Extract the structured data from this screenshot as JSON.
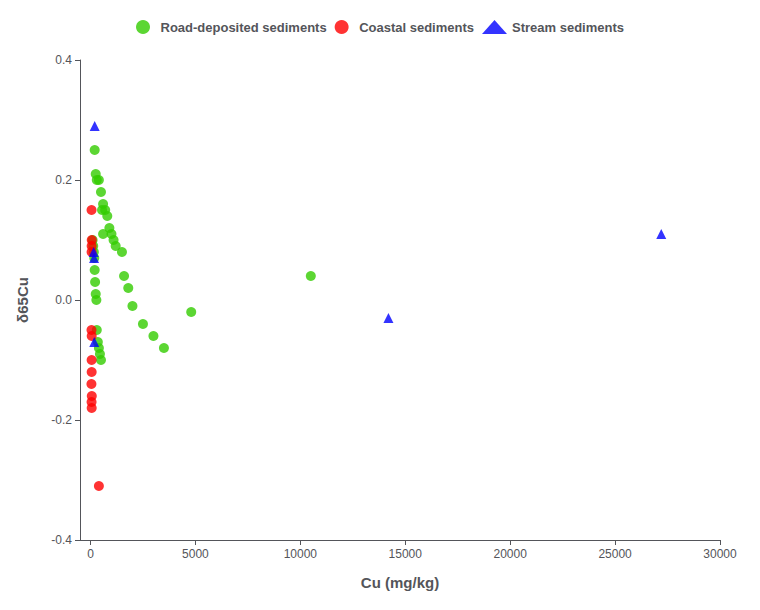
{
  "chart_data": {
    "type": "scatter",
    "xlabel": "Cu (mg/kg)",
    "ylabel": "δ65Cu",
    "xlim": [
      -500,
      30000
    ],
    "ylim": [
      -0.4,
      0.4
    ],
    "xticks": [
      0,
      5000,
      10000,
      15000,
      20000,
      25000,
      30000
    ],
    "yticks": [
      -0.4,
      -0.2,
      {
        "value": 0,
        "label": "0.0"
      },
      0.2,
      0.4
    ],
    "grid": false,
    "legend": "top",
    "series": [
      {
        "name": "Road-deposited sediments",
        "color": "#33cc00",
        "marker": "circle",
        "x": [
          200,
          250,
          300,
          400,
          500,
          600,
          700,
          800,
          900,
          1000,
          1100,
          1200,
          1500,
          1600,
          1800,
          2000,
          2500,
          3000,
          3500,
          4800,
          10500,
          100,
          130,
          160,
          180,
          200,
          220,
          250,
          280,
          300,
          350,
          400,
          450,
          500,
          550,
          600
        ],
        "values": [
          0.25,
          0.21,
          0.2,
          0.2,
          0.18,
          0.16,
          0.15,
          0.14,
          0.12,
          0.11,
          0.1,
          0.09,
          0.08,
          0.04,
          0.02,
          -0.01,
          -0.04,
          -0.06,
          -0.08,
          -0.02,
          0.04,
          0.1,
          0.09,
          0.08,
          0.07,
          0.05,
          0.03,
          0.01,
          0.0,
          -0.05,
          -0.07,
          -0.08,
          -0.09,
          -0.1,
          0.15,
          0.11
        ]
      },
      {
        "name": "Coastal sediments",
        "color": "#ff0000",
        "marker": "circle",
        "x": [
          50,
          60,
          55,
          52,
          48,
          58,
          54,
          56,
          45,
          62,
          51,
          57,
          400
        ],
        "values": [
          0.15,
          0.1,
          0.09,
          0.08,
          -0.05,
          -0.06,
          -0.1,
          -0.12,
          -0.14,
          -0.16,
          -0.17,
          -0.18,
          -0.31
        ]
      },
      {
        "name": "Stream sediments",
        "color": "#0000ff",
        "marker": "triangle",
        "x": [
          200,
          150,
          170,
          180,
          14200,
          27200
        ],
        "values": [
          0.29,
          0.08,
          0.07,
          -0.07,
          -0.03,
          0.11
        ]
      }
    ]
  }
}
